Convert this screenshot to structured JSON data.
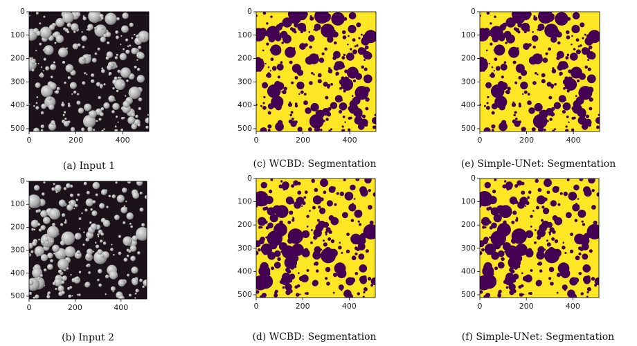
{
  "chart_data": [
    {
      "type": "image",
      "title": "(a) Input 1",
      "xlim": [
        0,
        512
      ],
      "ylim": [
        512,
        0
      ],
      "xticks": [
        0,
        200,
        400
      ],
      "yticks": [
        0,
        100,
        200,
        300,
        400,
        500
      ]
    },
    {
      "type": "image",
      "title": "(b) Input 2",
      "xlim": [
        0,
        512
      ],
      "ylim": [
        512,
        0
      ],
      "xticks": [
        0,
        200,
        400
      ],
      "yticks": [
        0,
        100,
        200,
        300,
        400,
        500
      ]
    },
    {
      "type": "image",
      "title": "(c) WCBD: Segmentation",
      "xlim": [
        0,
        512
      ],
      "ylim": [
        512,
        0
      ],
      "xticks": [
        0,
        200,
        400
      ],
      "yticks": [
        0,
        100,
        200,
        300,
        400,
        500
      ]
    },
    {
      "type": "image",
      "title": "(d) WCBD: Segmentation",
      "xlim": [
        0,
        512
      ],
      "ylim": [
        512,
        0
      ],
      "xticks": [
        0,
        200,
        400
      ],
      "yticks": [
        0,
        100,
        200,
        300,
        400,
        500
      ]
    },
    {
      "type": "image",
      "title": "(e) Simple-UNet: Segmentation",
      "xlim": [
        0,
        512
      ],
      "ylim": [
        512,
        0
      ],
      "xticks": [
        0,
        200,
        400
      ],
      "yticks": [
        0,
        100,
        200,
        300,
        400,
        500
      ]
    },
    {
      "type": "image",
      "title": "(f) Simple-UNet: Segmentation",
      "xlim": [
        0,
        512
      ],
      "ylim": [
        512,
        0
      ],
      "xticks": [
        0,
        200,
        400
      ],
      "yticks": [
        0,
        100,
        200,
        300,
        400,
        500
      ]
    }
  ]
}
